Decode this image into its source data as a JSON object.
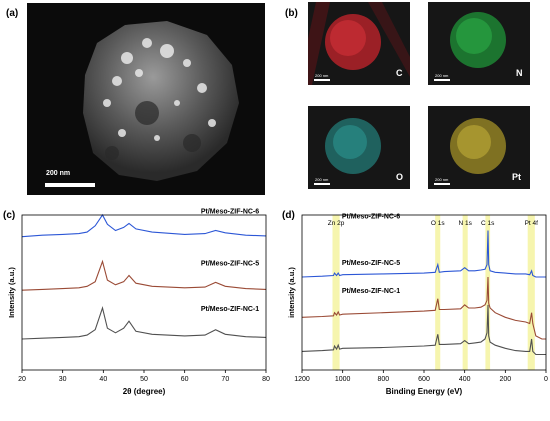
{
  "panel_labels": {
    "a": "(a)",
    "b": "(b)",
    "c": "(c)",
    "d": "(d)"
  },
  "tem": {
    "scalebar": "200 nm"
  },
  "eds_maps": [
    {
      "element": "C",
      "color": "#c8242c",
      "scalebar": "200 nm"
    },
    {
      "element": "N",
      "color": "#1f9c3a",
      "scalebar": "200 nm"
    },
    {
      "element": "O",
      "color": "#27948f",
      "scalebar": "200 nm"
    },
    {
      "element": "Pt",
      "color": "#b8a32a",
      "scalebar": "200 nm"
    }
  ],
  "chart_data": [
    {
      "type": "line",
      "panel": "c",
      "xlabel": "2θ (degree)",
      "ylabel": "Intensity (a.u.)",
      "xlim": [
        20,
        80
      ],
      "x_ticks": [
        "20",
        "30",
        "40",
        "50",
        "60",
        "70",
        "80"
      ],
      "grid": false,
      "y_ticks_shown": false,
      "series": [
        {
          "name": "Pt/Meso-ZIF-NC-6",
          "color": "#2c57d6",
          "x": [
            20,
            25,
            30,
            34,
            36,
            38,
            39.8,
            41,
            43,
            45,
            46.3,
            48,
            52,
            60,
            65,
            67.6,
            70,
            75,
            80
          ],
          "y": [
            0.86,
            0.87,
            0.875,
            0.88,
            0.89,
            0.93,
            1.0,
            0.94,
            0.9,
            0.92,
            0.945,
            0.91,
            0.89,
            0.875,
            0.88,
            0.9,
            0.885,
            0.87,
            0.865
          ]
        },
        {
          "name": "Pt/Meso-ZIF-NC-5",
          "color": "#9a4a35",
          "x": [
            20,
            25,
            30,
            34,
            36,
            38,
            39.8,
            41,
            43,
            45,
            46.3,
            48,
            52,
            60,
            65,
            67.6,
            70,
            75,
            80
          ],
          "y": [
            0.515,
            0.52,
            0.525,
            0.53,
            0.54,
            0.57,
            0.7,
            0.58,
            0.55,
            0.57,
            0.61,
            0.56,
            0.54,
            0.53,
            0.535,
            0.565,
            0.54,
            0.525,
            0.52
          ]
        },
        {
          "name": "Pt/Meso-ZIF-NC-1",
          "color": "#505050",
          "x": [
            20,
            25,
            30,
            34,
            36,
            38,
            39.8,
            41,
            43,
            45,
            46.3,
            48,
            52,
            60,
            65,
            67.6,
            70,
            75,
            80
          ],
          "y": [
            0.2,
            0.205,
            0.21,
            0.215,
            0.225,
            0.26,
            0.4,
            0.27,
            0.24,
            0.27,
            0.315,
            0.25,
            0.23,
            0.22,
            0.225,
            0.26,
            0.23,
            0.215,
            0.21
          ]
        }
      ]
    },
    {
      "type": "line",
      "panel": "d",
      "xlabel": "Binding Energy (eV)",
      "ylabel": "intensity (a.u.)",
      "xlim": [
        1200,
        0
      ],
      "x_ticks": [
        "1200",
        "1000",
        "800",
        "600",
        "400",
        "200",
        "0"
      ],
      "grid": false,
      "y_ticks_shown": false,
      "highlight_bands": [
        {
          "label": "Zn 2p",
          "range": [
            1050,
            1015
          ]
        },
        {
          "label": "O 1s",
          "range": [
            545,
            520
          ]
        },
        {
          "label": "N 1s",
          "range": [
            410,
            385
          ]
        },
        {
          "label": "C 1s",
          "range": [
            298,
            275
          ]
        },
        {
          "label": "Pt 4f",
          "range": [
            90,
            55
          ]
        }
      ],
      "highlight_color": "#f4f3a0",
      "series": [
        {
          "name": "Pt/Meso-ZIF-NC-6",
          "color": "#2c57d6",
          "x": [
            1200,
            1100,
            1045,
            1040,
            1030,
            1022,
            1015,
            1000,
            800,
            600,
            545,
            532,
            525,
            500,
            420,
            400,
            380,
            350,
            320,
            300,
            290,
            285,
            282,
            275,
            250,
            200,
            150,
            100,
            80,
            71,
            65,
            50,
            20,
            0
          ],
          "y": [
            0.6,
            0.605,
            0.61,
            0.625,
            0.61,
            0.625,
            0.61,
            0.615,
            0.62,
            0.625,
            0.63,
            0.68,
            0.63,
            0.635,
            0.64,
            0.66,
            0.64,
            0.64,
            0.645,
            0.65,
            0.68,
            0.9,
            0.68,
            0.64,
            0.63,
            0.625,
            0.62,
            0.62,
            0.615,
            0.64,
            0.61,
            0.6,
            0.6,
            0.6
          ]
        },
        {
          "name": "Pt/Meso-ZIF-NC-5",
          "color": "#9a4a35",
          "x": [
            1200,
            1100,
            1045,
            1040,
            1030,
            1022,
            1015,
            1000,
            800,
            600,
            545,
            532,
            525,
            500,
            420,
            400,
            380,
            350,
            320,
            300,
            290,
            285,
            282,
            275,
            250,
            200,
            150,
            100,
            80,
            71,
            65,
            50,
            20,
            0
          ],
          "y": [
            0.34,
            0.345,
            0.35,
            0.37,
            0.355,
            0.375,
            0.355,
            0.36,
            0.37,
            0.38,
            0.385,
            0.46,
            0.39,
            0.39,
            0.395,
            0.42,
            0.4,
            0.4,
            0.405,
            0.42,
            0.45,
            0.6,
            0.43,
            0.4,
            0.37,
            0.34,
            0.32,
            0.31,
            0.3,
            0.37,
            0.3,
            0.22,
            0.2,
            0.2
          ]
        },
        {
          "name": "Pt/Meso-ZIF-NC-1",
          "color": "#505050",
          "x": [
            1200,
            1100,
            1045,
            1040,
            1030,
            1022,
            1015,
            1000,
            800,
            600,
            545,
            532,
            525,
            500,
            420,
            400,
            380,
            350,
            320,
            300,
            290,
            285,
            282,
            275,
            250,
            200,
            150,
            100,
            80,
            71,
            65,
            50,
            20,
            0
          ],
          "y": [
            0.12,
            0.125,
            0.13,
            0.155,
            0.135,
            0.16,
            0.135,
            0.14,
            0.145,
            0.155,
            0.16,
            0.23,
            0.165,
            0.165,
            0.17,
            0.19,
            0.17,
            0.175,
            0.18,
            0.2,
            0.24,
            0.42,
            0.22,
            0.18,
            0.16,
            0.14,
            0.125,
            0.12,
            0.12,
            0.2,
            0.12,
            0.1,
            0.1,
            0.1
          ]
        }
      ]
    }
  ]
}
